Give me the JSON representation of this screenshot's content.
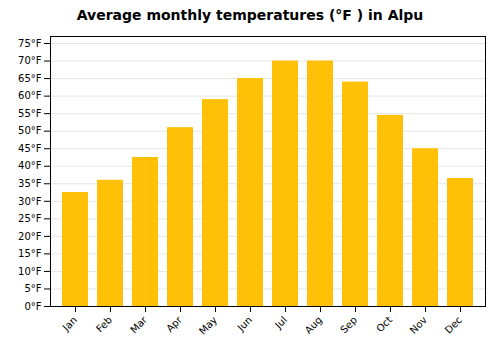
{
  "chart_data": {
    "type": "bar",
    "title": "Average monthly temperatures (°F ) in Alpu",
    "categories": [
      "Jan",
      "Feb",
      "Mar",
      "Apr",
      "May",
      "Jun",
      "Jul",
      "Aug",
      "Sep",
      "Oct",
      "Nov",
      "Dec"
    ],
    "values": [
      32.5,
      36,
      42.5,
      51,
      59,
      65,
      70,
      70,
      64,
      54.5,
      45,
      36.5
    ],
    "color": "#FFC107",
    "ylim": [
      0,
      77
    ],
    "yticks": [
      {
        "value": 0,
        "label": "0°F"
      },
      {
        "value": 5,
        "label": "5°F"
      },
      {
        "value": 10,
        "label": "10°F"
      },
      {
        "value": 15,
        "label": "15°F"
      },
      {
        "value": 20,
        "label": "20°F"
      },
      {
        "value": 25,
        "label": "25°F"
      },
      {
        "value": 30,
        "label": "30°F"
      },
      {
        "value": 35,
        "label": "35°F"
      },
      {
        "value": 40,
        "label": "40°F"
      },
      {
        "value": 45,
        "label": "45°F"
      },
      {
        "value": 50,
        "label": "50°F"
      },
      {
        "value": 55,
        "label": "55°F"
      },
      {
        "value": 60,
        "label": "60°F"
      },
      {
        "value": 65,
        "label": "65°F"
      },
      {
        "value": 70,
        "label": "70°F"
      },
      {
        "value": 75,
        "label": "75°F"
      }
    ],
    "grid": true
  }
}
